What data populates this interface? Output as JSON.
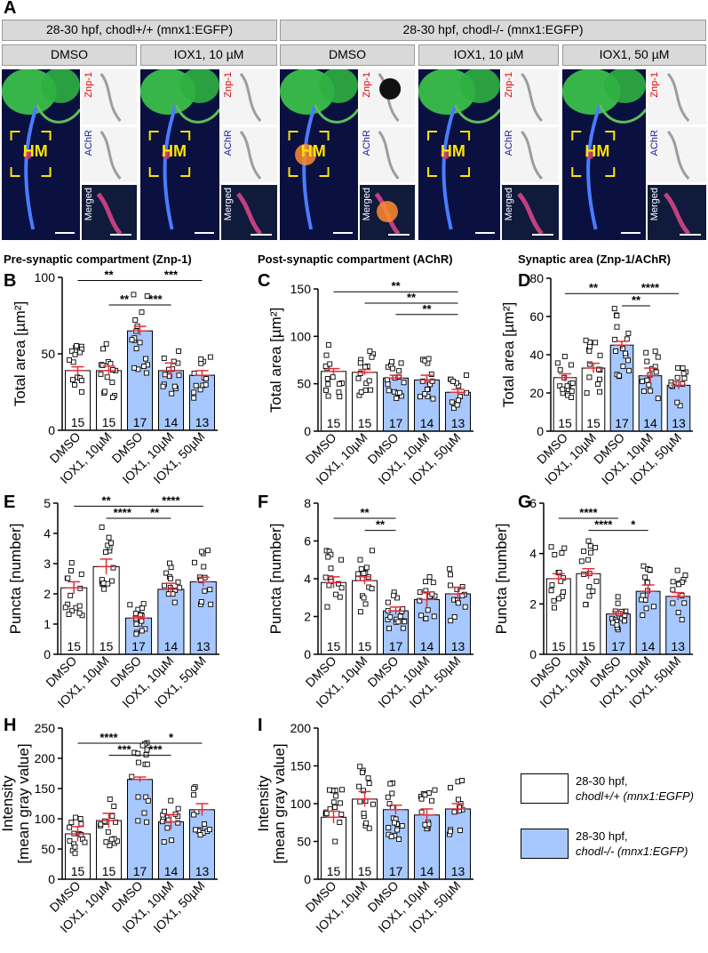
{
  "panel_a": {
    "letter": "A",
    "group_headers": [
      "28-30 hpf, chodl+/+ (mnx1:EGFP)",
      "28-30 hpf, chodl-/- (mnx1:EGFP)"
    ],
    "condition_headers": [
      "DMSO",
      "IOX1, 10 µM",
      "DMSO",
      "IOX1, 10 µM",
      "IOX1, 50 µM"
    ],
    "hm_label": "HM",
    "inset_labels": [
      "Znp-1",
      "AChR",
      "Merged"
    ]
  },
  "sections": {
    "pre": "Pre-synaptic compartment (Znp-1)",
    "post": "Post-synaptic compartment (AChR)",
    "syn": "Synaptic area (Znp-1/AChR)"
  },
  "legend": {
    "wt_line1": "28-30 hpf,",
    "wt_line2": "chodl+/+ (mnx1:EGFP)",
    "ko_line1": "28-30 hpf,",
    "ko_line2": "chodl-/- (mnx1:EGFP)",
    "wt_color": "#ffffff",
    "ko_color": "#a6c8ff"
  },
  "chart_data": [
    {
      "id": "B",
      "type": "bar",
      "ylabel": "Total area [µm²]",
      "ylim": [
        0,
        100
      ],
      "yticks": [
        0,
        50,
        100
      ],
      "categories": [
        "DMSO",
        "IOX1, 10µM",
        "DMSO",
        "IOX1, 10µM",
        "IOX1, 50µM"
      ],
      "values": [
        39,
        39,
        65,
        39,
        36
      ],
      "errors": [
        2.5,
        3,
        3,
        5,
        3
      ],
      "n": [
        15,
        15,
        17,
        14,
        13
      ],
      "sig": [
        {
          "from": 0,
          "to": 2,
          "label": "**",
          "level": 3
        },
        {
          "from": 1,
          "to": 2,
          "label": "**",
          "level": 1
        },
        {
          "from": 2,
          "to": 4,
          "label": "***",
          "level": 3
        },
        {
          "from": 2,
          "to": 3,
          "label": "***",
          "level": 1
        }
      ]
    },
    {
      "id": "C",
      "type": "bar",
      "ylabel": "Total area [µm²]",
      "ylim": [
        0,
        150
      ],
      "yticks": [
        0,
        50,
        100,
        150
      ],
      "categories": [
        "DMSO",
        "IOX1, 10µM",
        "DMSO",
        "IOX1, 10µM",
        "IOX1, 50µM"
      ],
      "values": [
        63,
        62,
        56,
        54,
        41
      ],
      "errors": [
        3,
        3,
        3,
        5,
        3
      ],
      "n": [
        15,
        15,
        17,
        14,
        13
      ],
      "sig": [
        {
          "from": 0,
          "to": 4,
          "label": "**",
          "level": 3
        },
        {
          "from": 1,
          "to": 4,
          "label": "**",
          "level": 2
        },
        {
          "from": 2,
          "to": 4,
          "label": "**",
          "level": 1
        }
      ]
    },
    {
      "id": "D",
      "type": "bar",
      "ylabel": "Total area [µm²]",
      "ylim": [
        0,
        80
      ],
      "yticks": [
        0,
        20,
        40,
        60,
        80
      ],
      "categories": [
        "DMSO",
        "IOX1, 10µM",
        "DMSO",
        "IOX1, 10µM",
        "IOX1, 50µM"
      ],
      "values": [
        28,
        33,
        45,
        29,
        24
      ],
      "errors": [
        2,
        2.5,
        2,
        4,
        2
      ],
      "n": [
        15,
        15,
        17,
        14,
        13
      ],
      "sig": [
        {
          "from": 0,
          "to": 2,
          "label": "**",
          "level": 2
        },
        {
          "from": 2,
          "to": 4,
          "label": "****",
          "level": 2
        },
        {
          "from": 2,
          "to": 3,
          "label": "**",
          "level": 1
        }
      ]
    },
    {
      "id": "E",
      "type": "bar",
      "ylabel": "Puncta [number]",
      "ylim": [
        0,
        5
      ],
      "yticks": [
        0,
        1,
        2,
        3,
        4,
        5
      ],
      "categories": [
        "DMSO",
        "IOX1, 10µM",
        "DMSO",
        "IOX1, 10µM",
        "IOX1, 50µM"
      ],
      "values": [
        2.2,
        2.9,
        1.2,
        2.15,
        2.4
      ],
      "errors": [
        0.2,
        0.25,
        0.05,
        0.2,
        0.15
      ],
      "n": [
        15,
        15,
        17,
        14,
        13
      ],
      "sig": [
        {
          "from": 0,
          "to": 2,
          "label": "**",
          "level": 3
        },
        {
          "from": 1,
          "to": 2,
          "label": "****",
          "level": 2
        },
        {
          "from": 2,
          "to": 4,
          "label": "****",
          "level": 3
        },
        {
          "from": 2,
          "to": 3,
          "label": "**",
          "level": 2
        }
      ]
    },
    {
      "id": "F",
      "type": "bar",
      "ylabel": "Puncta [number]",
      "ylim": [
        0,
        8
      ],
      "yticks": [
        0,
        2,
        4,
        6,
        8
      ],
      "categories": [
        "DMSO",
        "IOX1, 10µM",
        "DMSO",
        "IOX1, 10µM",
        "IOX1, 50µM"
      ],
      "values": [
        3.8,
        3.9,
        2.3,
        2.9,
        3.2
      ],
      "errors": [
        0.3,
        0.2,
        0.2,
        0.4,
        0.35
      ],
      "n": [
        15,
        15,
        17,
        14,
        13
      ],
      "sig": [
        {
          "from": 0,
          "to": 2,
          "label": "**",
          "level": 2
        },
        {
          "from": 1,
          "to": 2,
          "label": "**",
          "level": 1
        }
      ]
    },
    {
      "id": "G",
      "type": "bar",
      "ylabel": "Puncta [number]",
      "ylim": [
        0,
        6
      ],
      "yticks": [
        0,
        2,
        4,
        6
      ],
      "categories": [
        "DMSO",
        "IOX1, 10µM",
        "DMSO",
        "IOX1, 10µM",
        "IOX1, 50µM"
      ],
      "values": [
        3.0,
        3.2,
        1.6,
        2.5,
        2.3
      ],
      "errors": [
        0.2,
        0.2,
        0.1,
        0.25,
        0.15
      ],
      "n": [
        15,
        15,
        17,
        14,
        13
      ],
      "sig": [
        {
          "from": 0,
          "to": 2,
          "label": "****",
          "level": 2
        },
        {
          "from": 1,
          "to": 2,
          "label": "****",
          "level": 1
        },
        {
          "from": 2,
          "to": 3,
          "label": "*",
          "level": 1
        }
      ]
    },
    {
      "id": "H",
      "type": "bar",
      "ylabel": "Intensity [mean gray value]",
      "ylim": [
        0,
        250
      ],
      "yticks": [
        0,
        50,
        100,
        150,
        200,
        250
      ],
      "categories": [
        "DMSO",
        "IOX1, 10µM",
        "DMSO",
        "IOX1, 10µM",
        "IOX1, 50µM"
      ],
      "values": [
        75,
        97,
        165,
        95,
        115
      ],
      "errors": [
        12,
        12,
        4,
        12,
        10
      ],
      "n": [
        15,
        15,
        17,
        14,
        13
      ],
      "sig": [
        {
          "from": 0,
          "to": 2,
          "label": "****",
          "level": 2
        },
        {
          "from": 1,
          "to": 2,
          "label": "***",
          "level": 1
        },
        {
          "from": 2,
          "to": 3,
          "label": "***",
          "level": 1
        },
        {
          "from": 2,
          "to": 4,
          "label": "*",
          "level": 2
        }
      ]
    },
    {
      "id": "I",
      "type": "bar",
      "ylabel": "Intensity [mean gray value]",
      "ylim": [
        0,
        200
      ],
      "yticks": [
        0,
        50,
        100,
        150,
        200
      ],
      "categories": [
        "DMSO",
        "IOX1, 10µM",
        "DMSO",
        "IOX1, 10µM",
        "IOX1, 50µM"
      ],
      "values": [
        82,
        106,
        92,
        85,
        93
      ],
      "errors": [
        8,
        10,
        6,
        8,
        7
      ],
      "n": [
        15,
        15,
        17,
        14,
        13
      ],
      "sig": []
    }
  ]
}
